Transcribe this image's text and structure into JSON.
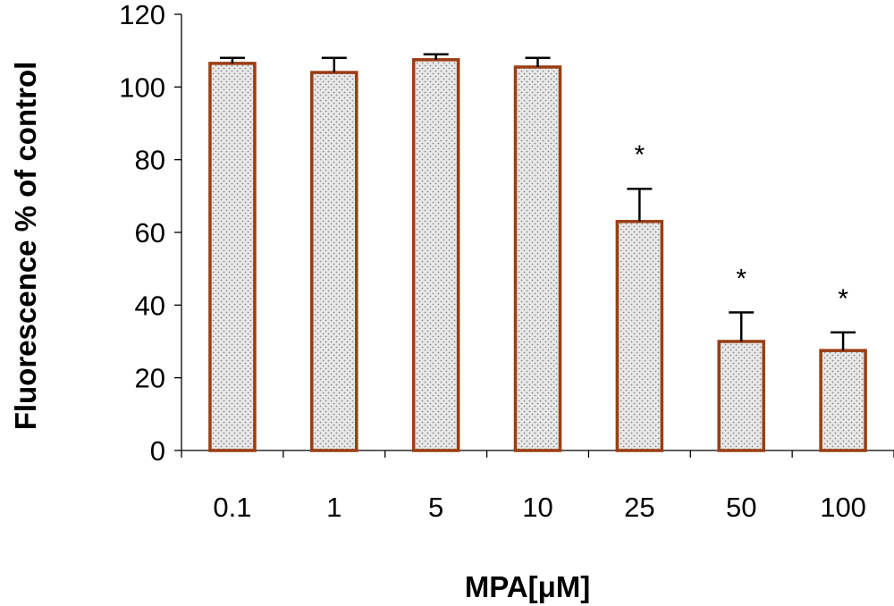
{
  "chart_data": {
    "type": "bar",
    "title": "",
    "xlabel": "MPA[μM]",
    "ylabel": "Fluorescence % of control",
    "ylim": [
      0,
      120
    ],
    "yticks": [
      "0",
      "20",
      "40",
      "60",
      "80",
      "100",
      "120"
    ],
    "categories": [
      "0.1",
      "1",
      "5",
      "10",
      "25",
      "50",
      "100"
    ],
    "values": [
      106.5,
      104,
      107.5,
      105.5,
      63,
      30,
      27.5
    ],
    "error_upper": [
      1.5,
      4,
      1.5,
      2.5,
      9,
      8,
      5
    ],
    "significance": [
      "",
      "",
      "",
      "",
      "*",
      "*",
      "*"
    ],
    "bar_style": {
      "fill": "#e8e8e8",
      "dot_color": "#8a8a8a",
      "edge": "#9b3d12"
    },
    "grid": false,
    "legend": "none"
  }
}
